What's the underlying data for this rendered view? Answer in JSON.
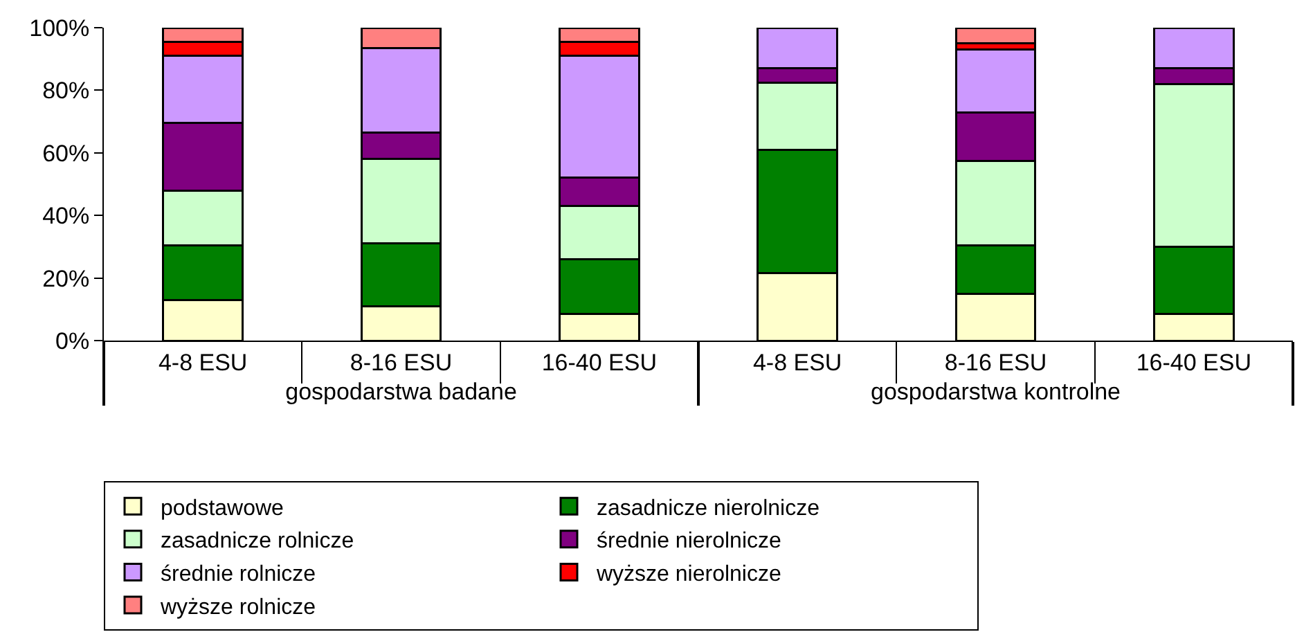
{
  "chart_data": {
    "type": "bar",
    "stacked": true,
    "categories": [
      "4-8 ESU",
      "8-16 ESU",
      "16-40 ESU",
      "4-8 ESU",
      "8-16 ESU",
      "16-40 ESU"
    ],
    "annotations": [
      "gospodarstwa badane",
      "gospodarstwa kontrolne"
    ],
    "series": [
      {
        "name": "podstawowe",
        "color": "#ffffcc",
        "values": [
          13,
          11,
          8.5,
          21.5,
          15,
          8.5
        ]
      },
      {
        "name": "zasadnicze nierolnicze",
        "color": "#008000",
        "values": [
          17.5,
          20,
          17.5,
          39.5,
          15.5,
          21.5
        ]
      },
      {
        "name": "zasadnicze rolnicze",
        "color": "#ccffcc",
        "values": [
          17.5,
          27,
          17,
          21.5,
          27,
          52
        ]
      },
      {
        "name": "średnie nierolnicze",
        "color": "#800080",
        "values": [
          21.5,
          8.5,
          9,
          4.5,
          15.5,
          5
        ]
      },
      {
        "name": "średnie rolnicze",
        "color": "#cc99ff",
        "values": [
          21.5,
          27,
          39,
          13,
          20,
          13
        ]
      },
      {
        "name": "wyższe nierolnicze",
        "color": "#ff0000",
        "values": [
          4.5,
          0,
          4.5,
          0,
          2,
          0
        ]
      },
      {
        "name": "wyższe rolnicze",
        "color": "#ff8080",
        "values": [
          4.5,
          6.5,
          4.5,
          0,
          5,
          0
        ]
      }
    ],
    "ylim": [
      0,
      100
    ],
    "yticks": [
      {
        "value": 0,
        "label": "0%"
      },
      {
        "value": 20,
        "label": "20%"
      },
      {
        "value": 40,
        "label": "40%"
      },
      {
        "value": 60,
        "label": "60%"
      },
      {
        "value": 80,
        "label": "80%"
      },
      {
        "value": 100,
        "label": "100%"
      }
    ],
    "grid": false,
    "legend": "bottom"
  }
}
